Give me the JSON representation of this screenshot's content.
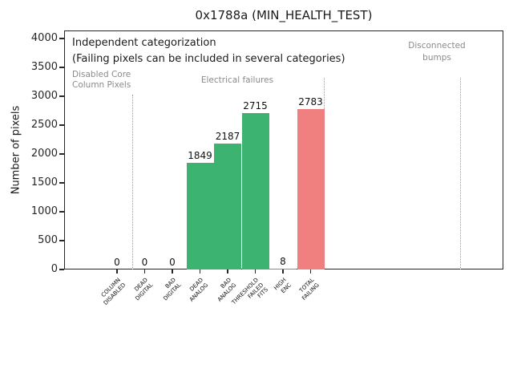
{
  "title": "0x1788a (MIN_HEALTH_TEST)",
  "annotations": {
    "independent": "Independent categorization",
    "failing_note": "(Failing pixels can be included in several categories)"
  },
  "sections": [
    {
      "label": "Disabled Core\nColumn Pixels"
    },
    {
      "label": "Electrical failures"
    },
    {
      "label": "Disconnected\nbumps"
    }
  ],
  "colors": {
    "bar_green": "#3cb371",
    "bar_red": "#f08080",
    "gray_text": "#8a8a8a",
    "divider_gray": "#999999",
    "axis": "#262626"
  },
  "chart_data": {
    "type": "bar",
    "title": "0x1788a (MIN_HEALTH_TEST)",
    "xlabel": "",
    "ylabel": "Number of pixels",
    "ylim": [
      0,
      4000
    ],
    "yticks": [
      0,
      500,
      1000,
      1500,
      2000,
      2500,
      3000,
      3500,
      4000
    ],
    "grid": false,
    "categories": [
      "COLUMN\nDISABLED",
      "DEAD\nDIGITAL",
      "BAD\nDIGITAL",
      "DEAD\nANALOG",
      "BAD\nANALOG",
      "THRESHOLD\nFAILED\nFITS",
      "HIGH\nENC",
      "TOTAL\nFAILING"
    ],
    "values": [
      0,
      0,
      0,
      1849,
      2187,
      2715,
      8,
      2783
    ],
    "value_labels": [
      "0",
      "0",
      "0",
      "1849",
      "2187",
      "2715",
      "8",
      "2783"
    ],
    "bar_colors": [
      "#3cb371",
      "#3cb371",
      "#3cb371",
      "#3cb371",
      "#3cb371",
      "#3cb371",
      "#3cb371",
      "#f08080"
    ],
    "section_ranges": [
      {
        "label": "Disabled Core\nColumn Pixels",
        "categories": [
          "COLUMN\nDISABLED"
        ]
      },
      {
        "label": "Electrical failures",
        "categories": [
          "DEAD\nDIGITAL",
          "BAD\nDIGITAL",
          "DEAD\nANALOG",
          "BAD\nANALOG",
          "THRESHOLD\nFAILED\nFITS",
          "HIGH\nENC",
          "TOTAL\nFAILING"
        ]
      },
      {
        "label": "Disconnected\nbumps",
        "categories": []
      }
    ]
  }
}
